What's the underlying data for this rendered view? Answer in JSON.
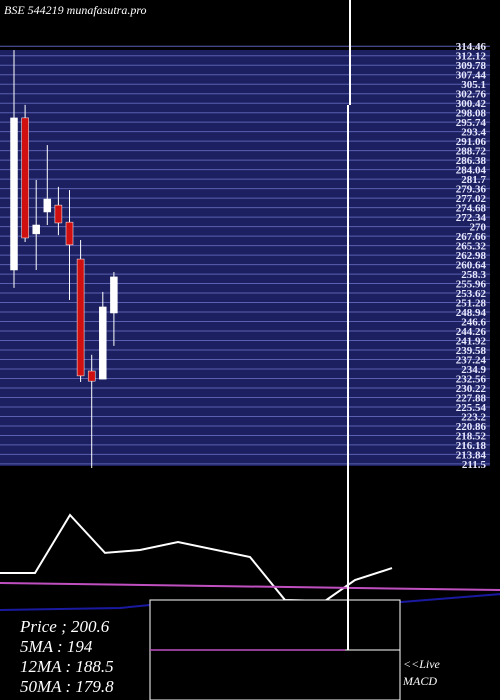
{
  "chart_data": {
    "type": "candlestick",
    "title": "BSE 544219 munafasutra.pro",
    "categories": [
      null,
      null,
      null,
      null,
      null,
      null,
      null,
      null,
      null,
      null
    ],
    "open": [
      259.3,
      296.8,
      268.2,
      273.6,
      275.3,
      271.1,
      262.0,
      234.4,
      232.4,
      248.7
    ],
    "close": [
      296.8,
      267.2,
      270.4,
      276.8,
      270.9,
      265.5,
      233.2,
      231.9,
      250.2,
      257.6
    ],
    "high": [
      313.5,
      300.0,
      281.5,
      290.1,
      279.8,
      279.0,
      266.7,
      238.4,
      253.9,
      258.8
    ],
    "low": [
      254.9,
      266.2,
      259.3,
      270.4,
      267.9,
      251.9,
      231.7,
      210.5,
      232.4,
      240.6
    ],
    "up_color": "#ffffff",
    "down_color": "#d01010",
    "ylim": [
      210,
      316
    ],
    "yticks": [
      314.46,
      312.12,
      309.78,
      307.44,
      305.1,
      302.76,
      300.42,
      298.08,
      295.74,
      293.4,
      291.06,
      288.72,
      286.38,
      284.04,
      281.7,
      279.36,
      277.02,
      274.68,
      272.34,
      270,
      267.66,
      265.32,
      262.98,
      260.64,
      258.3,
      255.96,
      253.62,
      251.28,
      248.94,
      246.6,
      244.26,
      241.92,
      239.58,
      237.24,
      234.9,
      232.56,
      230.22,
      227.88,
      225.54,
      223.2,
      220.86,
      218.52,
      216.18,
      213.84,
      211.5
    ],
    "grid": true,
    "grid_color": "#5a5fb0",
    "panel_color": "#1c2060",
    "indicator_panel": {
      "xlim": [
        0,
        500
      ],
      "ylim": [
        0,
        100
      ],
      "series": [
        {
          "color": "#ffffff",
          "x": [
            0,
            35,
            70,
            105,
            140,
            178,
            250,
            285,
            325,
            355,
            392
          ],
          "values": [
            45.3,
            45.3,
            79.4,
            57.1,
            58.8,
            63.5,
            54.7,
            29.4,
            28.8,
            41.2,
            48.2
          ]
        },
        {
          "color": "#c050c0",
          "x": [
            0,
            500
          ],
          "values": [
            39.4,
            35.3
          ]
        },
        {
          "color": "#1a1aa0",
          "x": [
            0,
            120,
            150,
            400,
            500
          ],
          "values": [
            23.5,
            24.7,
            26.5,
            28.2,
            32.9
          ]
        }
      ]
    },
    "info_lines": [
      "Price ; 200.6",
      "5MA : 194",
      "12MA : 188.5",
      "50MA : 179.8"
    ],
    "live_label": "<<Live",
    "macd_label": "MACD"
  }
}
